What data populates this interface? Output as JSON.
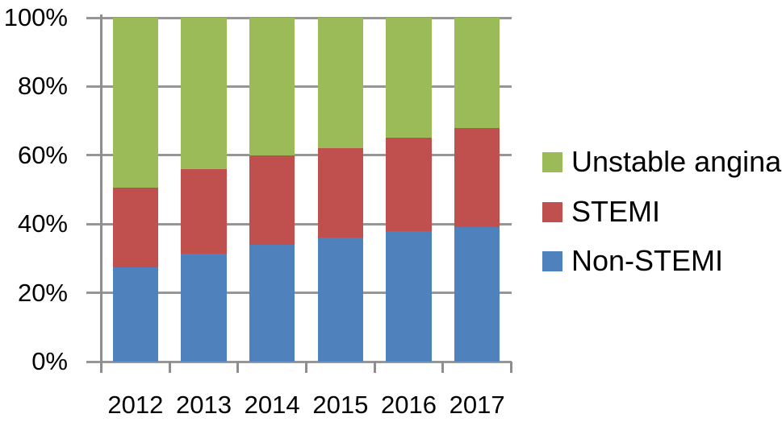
{
  "chart_data": {
    "type": "bar",
    "variant": "stacked-100-percent",
    "title": "",
    "categories": [
      "2012",
      "2013",
      "2014",
      "2015",
      "2016",
      "2017"
    ],
    "series": [
      {
        "name": "Non-STEMI",
        "color": "#4F81BD",
        "values": [
          27.5,
          31.5,
          34,
          36,
          38,
          39
        ]
      },
      {
        "name": "STEMI",
        "color": "#C0504D",
        "values": [
          23,
          24.5,
          26,
          26,
          27,
          29
        ]
      },
      {
        "name": "Unstable angina",
        "color": "#9BBB59",
        "values": [
          49.5,
          44,
          40,
          38,
          35,
          32
        ]
      }
    ],
    "x_axis": {
      "tick_labels": [
        "2012",
        "2013",
        "2014",
        "2015",
        "2016",
        "2017"
      ]
    },
    "y_axis": {
      "min": 0,
      "max": 100,
      "unit": "%",
      "tick_labels": [
        "0%",
        "20%",
        "40%",
        "60%",
        "80%",
        "100%"
      ]
    },
    "legend": {
      "position": "right",
      "entries": [
        "Unstable angina",
        "STEMI",
        "Non-STEMI"
      ]
    },
    "grid": true,
    "colors": {
      "gridline": "#969696",
      "axis": "#8E8E8E",
      "text": "#000000",
      "background": "#FFFFFF"
    }
  }
}
